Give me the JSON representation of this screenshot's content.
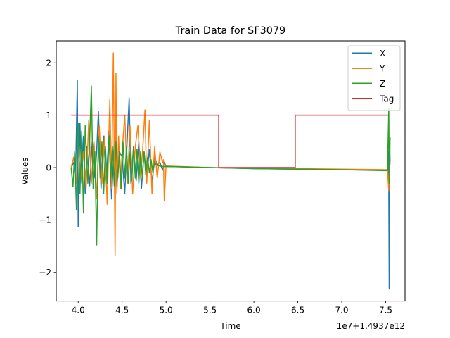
{
  "chart_data": {
    "type": "line",
    "title": "Train Data for SF3079",
    "xlabel": "Time",
    "ylabel": "Values",
    "x_offset_label": "1e7+1.4937e12",
    "xlim": [
      3.75,
      7.72
    ],
    "ylim": [
      -2.55,
      2.42
    ],
    "xticks": [
      4.0,
      4.5,
      5.0,
      5.5,
      6.0,
      6.5,
      7.0,
      7.5
    ],
    "xtick_labels": [
      "4.0",
      "4.5",
      "5.0",
      "5.5",
      "6.0",
      "6.5",
      "7.0",
      "7.5"
    ],
    "yticks": [
      -2,
      -1,
      0,
      1,
      2
    ],
    "ytick_labels": [
      "−2",
      "−1",
      "0",
      "1",
      "2"
    ],
    "grid": false,
    "legend_position": "top-right",
    "series": [
      {
        "name": "X",
        "color": "#1f77b4",
        "x": [
          3.92,
          3.95,
          3.97,
          3.99,
          4.0,
          4.02,
          4.04,
          4.06,
          4.08,
          4.1,
          4.13,
          4.16,
          4.19,
          4.21,
          4.23,
          4.26,
          4.29,
          4.32,
          4.35,
          4.38,
          4.41,
          4.44,
          4.47,
          4.5,
          4.53,
          4.56,
          4.58,
          4.6,
          4.63,
          4.66,
          4.69,
          4.72,
          4.75,
          4.78,
          4.81,
          4.84,
          4.87,
          4.9,
          4.93,
          4.96,
          4.98,
          5.0,
          5.5,
          6.0,
          6.5,
          7.0,
          7.5,
          7.52,
          7.53,
          7.535,
          7.54,
          7.545,
          7.55
        ],
        "y": [
          0.0,
          0.1,
          -0.2,
          1.67,
          -1.13,
          0.85,
          -0.3,
          0.6,
          -0.5,
          0.4,
          -0.35,
          0.5,
          -0.2,
          0.3,
          1.07,
          -0.4,
          0.6,
          -0.3,
          0.7,
          -0.6,
          0.5,
          -0.4,
          0.3,
          0.2,
          -0.5,
          0.6,
          1.33,
          -0.3,
          0.4,
          -0.25,
          0.5,
          -0.4,
          0.3,
          -0.2,
          0.35,
          -0.3,
          0.2,
          0.05,
          0.1,
          -0.05,
          0.1,
          0.02,
          0.0,
          -0.02,
          -0.03,
          -0.04,
          -0.05,
          -0.05,
          0.3,
          -0.4,
          -2.32,
          0.5,
          0.1
        ]
      },
      {
        "name": "Y",
        "color": "#ff7f0e",
        "x": [
          3.92,
          3.95,
          3.98,
          4.0,
          4.03,
          4.06,
          4.09,
          4.12,
          4.15,
          4.18,
          4.21,
          4.24,
          4.27,
          4.3,
          4.33,
          4.36,
          4.38,
          4.4,
          4.42,
          4.43,
          4.44,
          4.46,
          4.48,
          4.5,
          4.53,
          4.56,
          4.59,
          4.62,
          4.65,
          4.68,
          4.71,
          4.74,
          4.76,
          4.78,
          4.81,
          4.84,
          4.87,
          4.9,
          4.93,
          4.96,
          4.97,
          4.98,
          5.0,
          5.5,
          6.0,
          6.5,
          7.0,
          7.5,
          7.52,
          7.535,
          7.54,
          7.55
        ],
        "y": [
          0.0,
          0.2,
          -0.3,
          0.4,
          -0.2,
          0.3,
          -0.4,
          0.9,
          -0.3,
          0.5,
          -0.6,
          0.8,
          -0.3,
          0.6,
          -0.7,
          1.3,
          -0.4,
          2.19,
          -1.68,
          1.8,
          -0.5,
          0.6,
          -0.4,
          0.3,
          1.0,
          -0.3,
          0.8,
          -0.5,
          0.4,
          0.8,
          -0.2,
          0.5,
          1.1,
          -0.3,
          0.9,
          -0.5,
          0.4,
          -0.2,
          0.3,
          0.1,
          0.15,
          -0.63,
          0.03,
          0.0,
          -0.01,
          -0.02,
          -0.03,
          -0.04,
          -0.04,
          -0.44,
          0.3,
          0.05
        ]
      },
      {
        "name": "Z",
        "color": "#2ca02c",
        "x": [
          3.92,
          3.94,
          3.96,
          3.98,
          4.0,
          4.02,
          4.04,
          4.06,
          4.08,
          4.11,
          4.13,
          4.15,
          4.17,
          4.19,
          4.21,
          4.23,
          4.25,
          4.27,
          4.29,
          4.31,
          4.33,
          4.35,
          4.37,
          4.39,
          4.41,
          4.43,
          4.45,
          4.47,
          4.49,
          4.51,
          4.53,
          4.55,
          4.57,
          4.59,
          4.61,
          4.63,
          4.65,
          4.67,
          4.69,
          4.71,
          4.73,
          4.75,
          4.77,
          4.79,
          4.81,
          4.83,
          4.85,
          4.87,
          4.89,
          4.95,
          5.0,
          5.5,
          6.0,
          6.5,
          7.0,
          7.5,
          7.52,
          7.535,
          7.54,
          7.55
        ],
        "y": [
          0.0,
          -0.37,
          0.3,
          -0.8,
          0.85,
          -0.5,
          0.7,
          -0.87,
          0.8,
          -0.3,
          0.5,
          1.56,
          -0.4,
          0.3,
          -1.48,
          0.6,
          -0.2,
          0.5,
          -0.5,
          0.4,
          -0.3,
          0.6,
          -0.2,
          0.4,
          -0.35,
          0.5,
          -0.2,
          0.3,
          -0.4,
          0.5,
          -0.2,
          0.4,
          -0.3,
          0.3,
          -0.25,
          0.4,
          -0.2,
          0.35,
          -0.3,
          0.3,
          -0.2,
          0.3,
          -0.15,
          0.2,
          -0.1,
          0.15,
          -0.1,
          0.1,
          0.05,
          0.02,
          0.02,
          0.0,
          -0.02,
          -0.03,
          -0.04,
          -0.06,
          -0.06,
          1.12,
          -0.3,
          0.58
        ]
      },
      {
        "name": "Tag",
        "color": "#d62728",
        "x": [
          3.92,
          5.6,
          5.6,
          6.47,
          6.47,
          7.54
        ],
        "y": [
          1,
          1,
          0,
          0,
          1,
          1
        ]
      }
    ]
  }
}
